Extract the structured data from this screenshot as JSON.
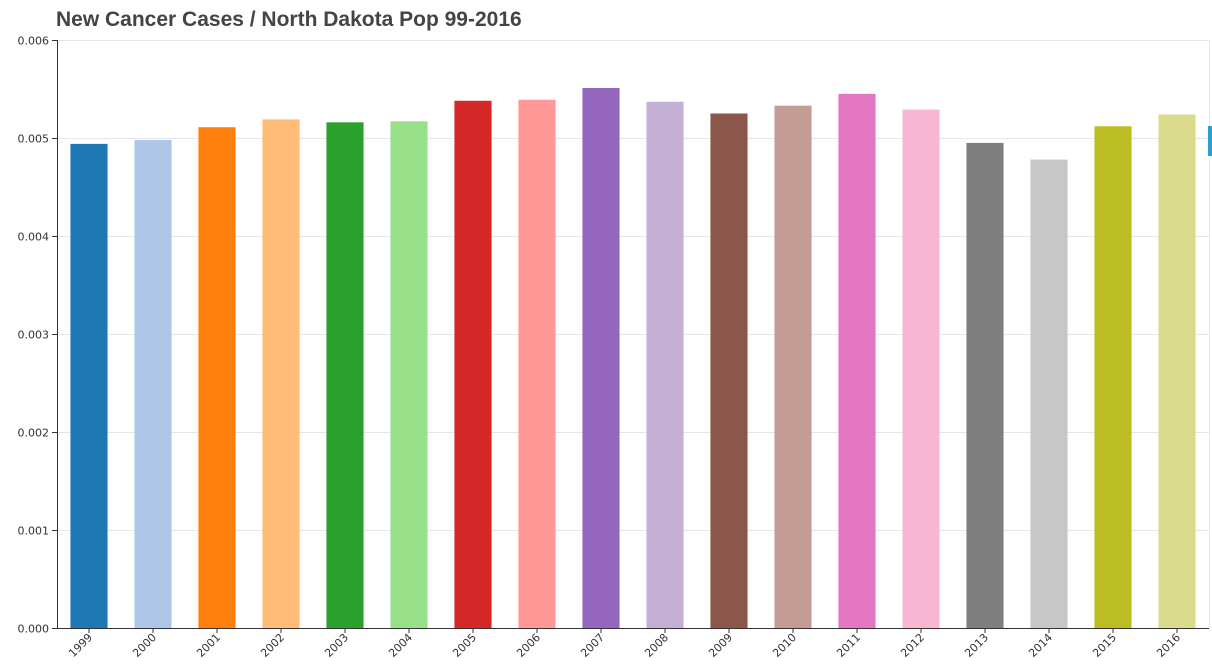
{
  "chart_data": {
    "type": "bar",
    "title": "New Cancer Cases / North Dakota Pop 99-2016",
    "xlabel": "",
    "ylabel": "",
    "categories": [
      "1999",
      "2000",
      "2001",
      "2002",
      "2003",
      "2004",
      "2005",
      "2006",
      "2007",
      "2008",
      "2009",
      "2010",
      "2011",
      "2012",
      "2013",
      "2014",
      "2015",
      "2016"
    ],
    "values": [
      0.00494,
      0.00498,
      0.00511,
      0.00519,
      0.00516,
      0.00517,
      0.00538,
      0.00539,
      0.00551,
      0.00537,
      0.00525,
      0.00533,
      0.00545,
      0.00529,
      0.00495,
      0.00478,
      0.00512,
      0.00524
    ],
    "colors": [
      "#1f77b4",
      "#aec7e8",
      "#ff7f0e",
      "#ffbb78",
      "#2ca02c",
      "#98df8a",
      "#d62728",
      "#ff9896",
      "#9467bd",
      "#c5b0d5",
      "#8c564b",
      "#c49c94",
      "#e377c2",
      "#f7b6d2",
      "#7f7f7f",
      "#c7c7c7",
      "#bcbd22",
      "#dbdb8d"
    ],
    "ylim": [
      0,
      0.006
    ],
    "yticks": [
      "0.000",
      "0.001",
      "0.002",
      "0.003",
      "0.004",
      "0.005",
      "0.006"
    ],
    "grid": true,
    "legend": "none"
  }
}
